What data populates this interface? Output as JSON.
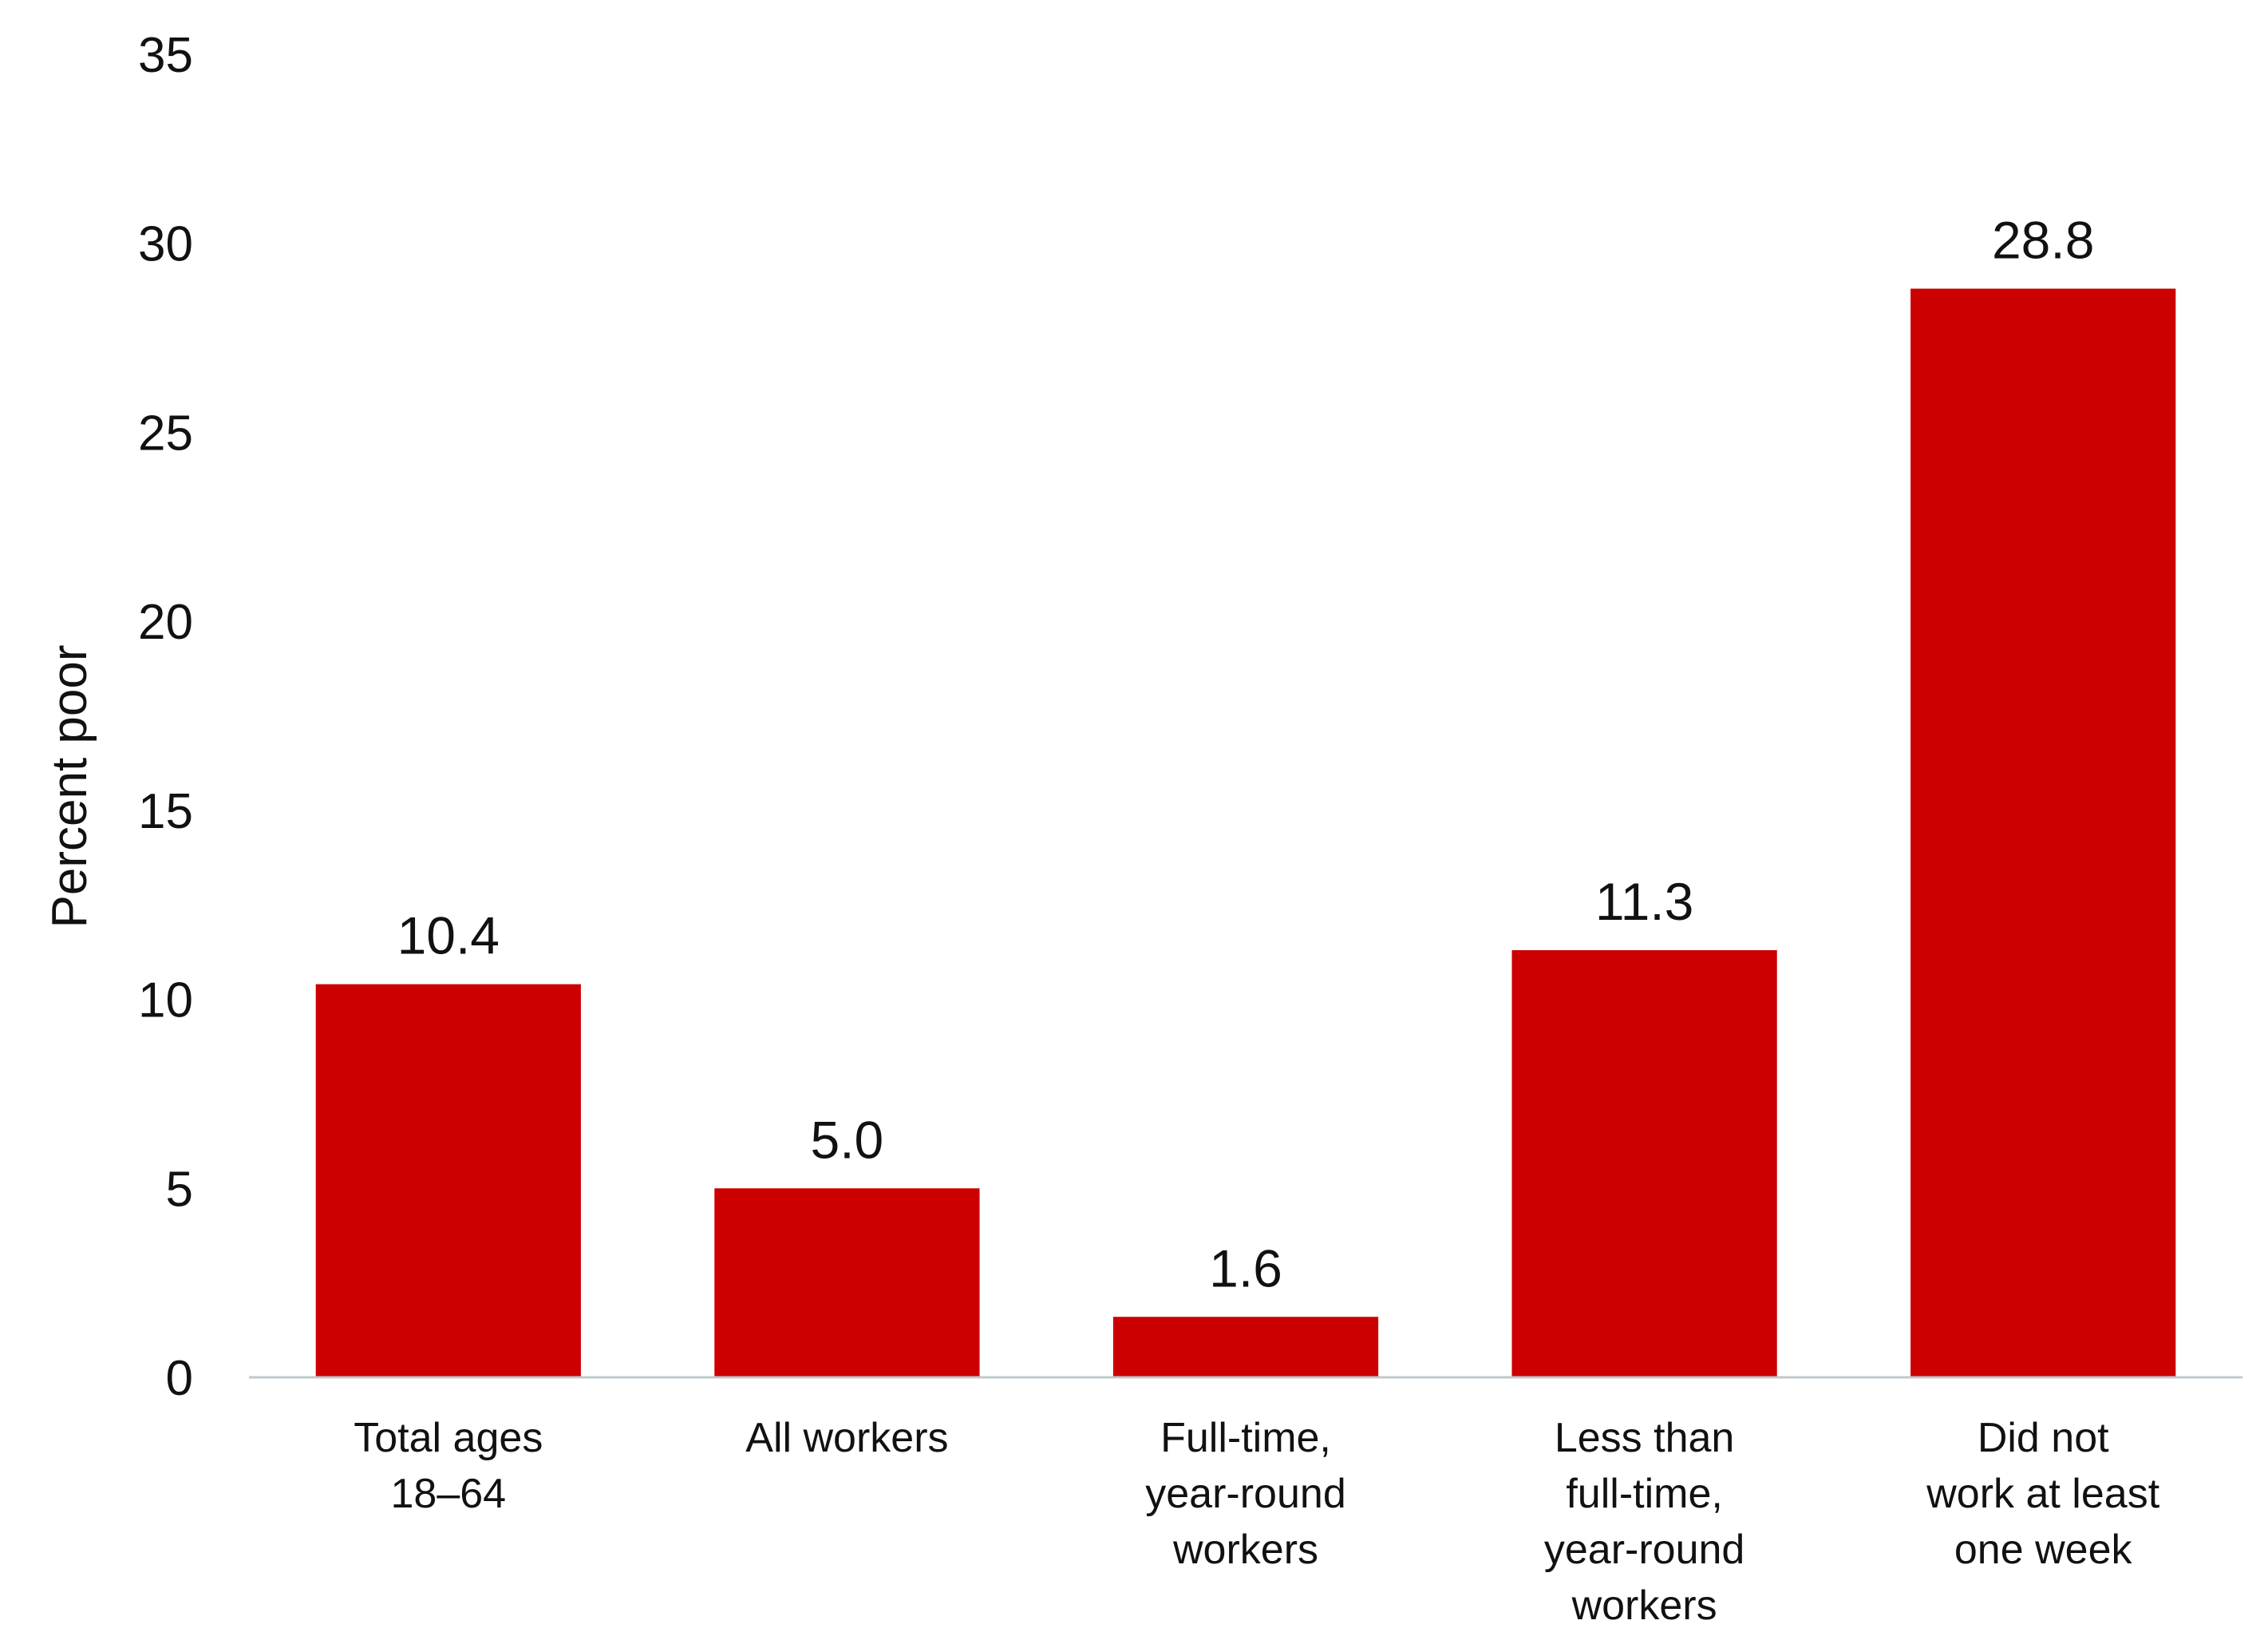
{
  "chart_data": {
    "type": "bar",
    "categories": [
      [
        "Total ages",
        "18–64"
      ],
      [
        "All workers"
      ],
      [
        "Full-time,",
        "year-round",
        "workers"
      ],
      [
        "Less than",
        "full-time,",
        "year-round",
        "workers"
      ],
      [
        "Did not",
        "work at least",
        "one week"
      ]
    ],
    "values": [
      10.4,
      5.0,
      1.6,
      11.3,
      28.8
    ],
    "value_labels": [
      "10.4",
      "5.0",
      "1.6",
      "11.3",
      "28.8"
    ],
    "ylabel": "Percent poor",
    "ylim": [
      0,
      35
    ],
    "yticks": [
      0,
      5,
      10,
      15,
      20,
      25,
      30,
      35
    ],
    "grid": false,
    "legend": "none",
    "colors": {
      "bar": "#cc0000",
      "axis": "#bfc9cc"
    }
  }
}
